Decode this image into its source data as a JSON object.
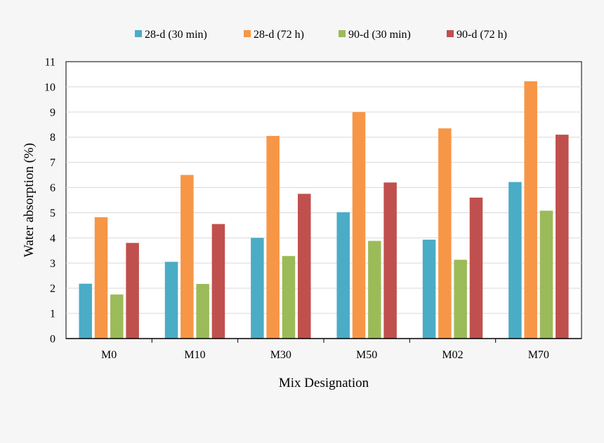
{
  "chart_data": {
    "type": "bar",
    "title": "",
    "xlabel": "Mix Designation",
    "ylabel": "Water absorption (%)",
    "ylim": [
      0,
      11
    ],
    "yticks": [
      0,
      1,
      2,
      3,
      4,
      5,
      6,
      7,
      8,
      9,
      10,
      11
    ],
    "grid": true,
    "legend_position": "top",
    "categories": [
      "M0",
      "M10",
      "M30",
      "M50",
      "M02",
      "M70"
    ],
    "series": [
      {
        "name": "28-d (30 min)",
        "color": "#4bacc6",
        "values": [
          2.18,
          3.05,
          4.0,
          5.02,
          3.93,
          6.22
        ]
      },
      {
        "name": "28-d (72 h)",
        "color": "#f79646",
        "values": [
          4.82,
          6.5,
          8.05,
          9.0,
          8.35,
          10.22
        ]
      },
      {
        "name": "90-d (30 min)",
        "color": "#9bbb59",
        "values": [
          1.75,
          2.17,
          3.28,
          3.88,
          3.13,
          5.08
        ]
      },
      {
        "name": "90-d (72 h)",
        "color": "#c0504d",
        "values": [
          3.8,
          4.55,
          5.75,
          6.2,
          5.6,
          8.1
        ]
      }
    ]
  }
}
